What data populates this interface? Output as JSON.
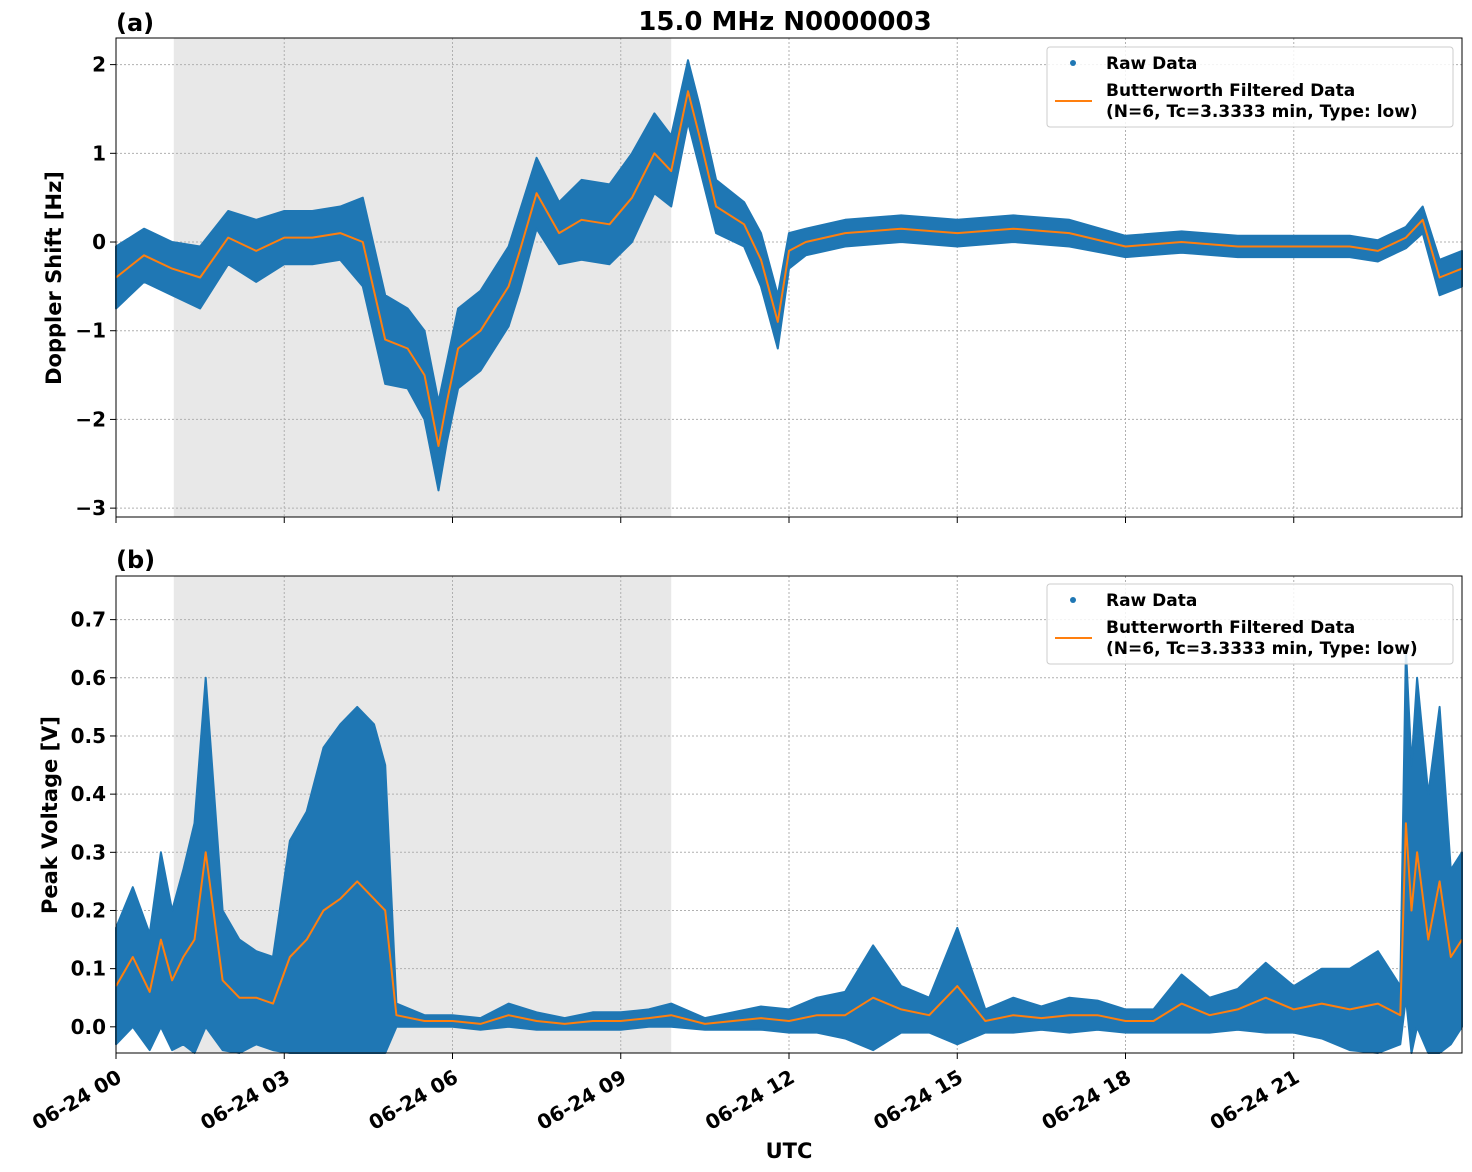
{
  "figure": {
    "title": "15.0 MHz N0000003",
    "xlabel": "UTC",
    "x_ticks": [
      {
        "hour": 0,
        "label": "06-24 00"
      },
      {
        "hour": 3,
        "label": "06-24 03"
      },
      {
        "hour": 6,
        "label": "06-24 06"
      },
      {
        "hour": 9,
        "label": "06-24 09"
      },
      {
        "hour": 12,
        "label": "06-24 12"
      },
      {
        "hour": 15,
        "label": "06-24 15"
      },
      {
        "hour": 18,
        "label": "06-24 18"
      },
      {
        "hour": 21,
        "label": "06-24 21"
      }
    ],
    "xlim_hours": [
      0,
      24
    ],
    "shaded_interval_hours": [
      1.03,
      9.9
    ],
    "colors": {
      "raw": "#1f77b4",
      "filtered": "#ff7f0e",
      "shade": "#e8e8e8",
      "grid": "#b0b0b0"
    }
  },
  "chart_data": [
    {
      "panel": "(a)",
      "type": "line",
      "ylabel": "Doppler Shift [Hz]",
      "ylim": [
        -3.1,
        2.3
      ],
      "yticks": [
        2,
        1,
        0,
        -1,
        -2,
        -3
      ],
      "ytick_labels": [
        "2",
        "1",
        "0",
        "−1",
        "−2",
        "−3"
      ],
      "legend": {
        "raw": "Raw Data",
        "filtered_line1": "Butterworth Filtered Data",
        "filtered_line2": "(N=6, Tc=3.3333 min, Type: low)",
        "position": "top-right"
      },
      "x_hours": [
        0,
        0.5,
        1,
        1.5,
        2,
        2.5,
        3,
        3.5,
        4,
        4.4,
        4.8,
        5.2,
        5.5,
        5.75,
        5.9,
        6.1,
        6.5,
        7,
        7.2,
        7.5,
        7.9,
        8.3,
        8.8,
        9.2,
        9.6,
        9.9,
        10.2,
        10.4,
        10.7,
        11.2,
        11.5,
        11.8,
        12,
        12.3,
        13,
        14,
        15,
        16,
        17,
        18,
        19,
        20,
        21,
        22,
        22.5,
        23,
        23.3,
        23.6,
        24
      ],
      "filtered": [
        -0.4,
        -0.15,
        -0.3,
        -0.4,
        0.05,
        -0.1,
        0.05,
        0.05,
        0.1,
        0.0,
        -1.1,
        -1.2,
        -1.5,
        -2.3,
        -1.8,
        -1.2,
        -1.0,
        -0.5,
        -0.1,
        0.55,
        0.1,
        0.25,
        0.2,
        0.5,
        1.0,
        0.8,
        1.7,
        1.2,
        0.4,
        0.2,
        -0.2,
        -0.9,
        -0.1,
        0.0,
        0.1,
        0.15,
        0.1,
        0.15,
        0.1,
        -0.05,
        0.0,
        -0.05,
        -0.05,
        -0.05,
        -0.1,
        0.05,
        0.25,
        -0.4,
        -0.3
      ],
      "raw_band": [
        0.35,
        0.3,
        0.3,
        0.35,
        0.3,
        0.35,
        0.3,
        0.3,
        0.3,
        0.5,
        0.5,
        0.45,
        0.5,
        0.5,
        0.45,
        0.45,
        0.45,
        0.45,
        0.45,
        0.4,
        0.35,
        0.45,
        0.45,
        0.5,
        0.45,
        0.4,
        0.35,
        0.35,
        0.3,
        0.25,
        0.3,
        0.3,
        0.2,
        0.15,
        0.15,
        0.15,
        0.15,
        0.15,
        0.15,
        0.12,
        0.12,
        0.12,
        0.12,
        0.12,
        0.12,
        0.12,
        0.15,
        0.2,
        0.2
      ]
    },
    {
      "panel": "(b)",
      "type": "line",
      "ylabel": "Peak Voltage [V]",
      "ylim": [
        -0.045,
        0.775
      ],
      "yticks": [
        0.0,
        0.1,
        0.2,
        0.3,
        0.4,
        0.5,
        0.6,
        0.7
      ],
      "ytick_labels": [
        "0.0",
        "0.1",
        "0.2",
        "0.3",
        "0.4",
        "0.5",
        "0.6",
        "0.7"
      ],
      "legend": {
        "raw": "Raw Data",
        "filtered_line1": "Butterworth Filtered Data",
        "filtered_line2": "(N=6, Tc=3.3333 min, Type: low)",
        "position": "top-right"
      },
      "x_hours": [
        0,
        0.3,
        0.6,
        0.8,
        1.0,
        1.2,
        1.4,
        1.6,
        1.9,
        2.2,
        2.5,
        2.8,
        3.1,
        3.4,
        3.7,
        4.0,
        4.3,
        4.6,
        4.8,
        5.0,
        5.5,
        6.0,
        6.5,
        7.0,
        7.5,
        8.0,
        8.5,
        9.0,
        9.5,
        9.9,
        10.5,
        11.0,
        11.5,
        12.0,
        12.5,
        13.0,
        13.5,
        14.0,
        14.5,
        15.0,
        15.5,
        16.0,
        16.5,
        17.0,
        17.5,
        18.0,
        18.5,
        19.0,
        19.5,
        20.0,
        20.5,
        21.0,
        21.5,
        22.0,
        22.5,
        22.9,
        23.0,
        23.1,
        23.2,
        23.4,
        23.6,
        23.8,
        24.0
      ],
      "filtered": [
        0.07,
        0.12,
        0.06,
        0.15,
        0.08,
        0.12,
        0.15,
        0.3,
        0.08,
        0.05,
        0.05,
        0.04,
        0.12,
        0.15,
        0.2,
        0.22,
        0.25,
        0.22,
        0.2,
        0.02,
        0.01,
        0.01,
        0.005,
        0.02,
        0.01,
        0.005,
        0.01,
        0.01,
        0.015,
        0.02,
        0.005,
        0.01,
        0.015,
        0.01,
        0.02,
        0.02,
        0.05,
        0.03,
        0.02,
        0.07,
        0.01,
        0.02,
        0.015,
        0.02,
        0.02,
        0.01,
        0.01,
        0.04,
        0.02,
        0.03,
        0.05,
        0.03,
        0.04,
        0.03,
        0.04,
        0.02,
        0.35,
        0.2,
        0.3,
        0.15,
        0.25,
        0.12,
        0.15
      ],
      "raw_band": [
        0.1,
        0.12,
        0.1,
        0.15,
        0.12,
        0.15,
        0.2,
        0.3,
        0.12,
        0.1,
        0.08,
        0.08,
        0.2,
        0.22,
        0.28,
        0.3,
        0.3,
        0.3,
        0.25,
        0.02,
        0.01,
        0.01,
        0.01,
        0.02,
        0.015,
        0.01,
        0.015,
        0.015,
        0.015,
        0.02,
        0.01,
        0.015,
        0.02,
        0.02,
        0.03,
        0.04,
        0.09,
        0.04,
        0.03,
        0.1,
        0.02,
        0.03,
        0.02,
        0.03,
        0.025,
        0.02,
        0.02,
        0.05,
        0.03,
        0.035,
        0.06,
        0.04,
        0.06,
        0.07,
        0.09,
        0.05,
        0.3,
        0.25,
        0.3,
        0.25,
        0.3,
        0.15,
        0.15
      ]
    }
  ]
}
